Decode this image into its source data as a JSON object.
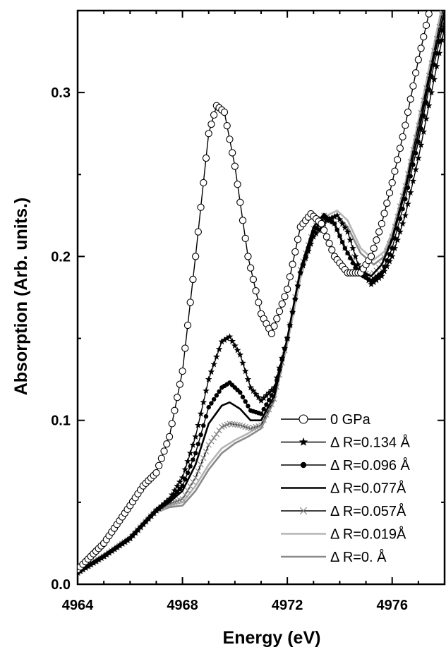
{
  "chart_data": {
    "type": "line",
    "xlabel": "Energy (eV)",
    "ylabel": "Absorption (Arb. units.)",
    "xlim": [
      4964,
      4978
    ],
    "ylim": [
      0.0,
      0.35
    ],
    "x_ticks": [
      4964,
      4968,
      4972,
      4976
    ],
    "x_tick_labels": [
      "4964",
      "4968",
      "4972",
      "4976"
    ],
    "y_ticks": [
      0.0,
      0.1,
      0.2,
      0.3
    ],
    "y_tick_labels": [
      "0.0",
      "0.1",
      "0.2",
      "0.3"
    ],
    "grid": false,
    "legend_position": "bottom-right",
    "series": [
      {
        "name": "0 GPa",
        "marker": "open-circle",
        "color": "#000000",
        "x": [
          4964,
          4965,
          4966,
          4966.5,
          4967,
          4967.5,
          4968,
          4968.5,
          4969,
          4969.3,
          4969.6,
          4970,
          4970.5,
          4971,
          4971.4,
          4972,
          4972.5,
          4972.9,
          4973.3,
          4973.8,
          4974.3,
          4974.8,
          4975.2,
          4975.6,
          4976,
          4976.5,
          4977,
          4977.5,
          4978
        ],
        "y": [
          0.009,
          0.025,
          0.048,
          0.06,
          0.068,
          0.09,
          0.13,
          0.2,
          0.275,
          0.292,
          0.288,
          0.255,
          0.2,
          0.165,
          0.153,
          0.18,
          0.218,
          0.226,
          0.22,
          0.2,
          0.19,
          0.19,
          0.2,
          0.22,
          0.245,
          0.28,
          0.32,
          0.355,
          0.38
        ]
      },
      {
        "name": "Δ R=0.134 Å",
        "marker": "filled-star",
        "color": "#000000",
        "x": [
          4964,
          4965,
          4966,
          4967,
          4967.5,
          4968,
          4968.5,
          4969,
          4969.5,
          4969.8,
          4970.2,
          4970.6,
          4971,
          4971.5,
          4972,
          4972.5,
          4973,
          4973.5,
          4973.9,
          4974.3,
          4974.7,
          4975.2,
          4975.6,
          4976,
          4976.5,
          4977,
          4977.5,
          4978
        ],
        "y": [
          0.007,
          0.017,
          0.028,
          0.045,
          0.052,
          0.065,
          0.09,
          0.125,
          0.148,
          0.151,
          0.14,
          0.12,
          0.112,
          0.12,
          0.15,
          0.19,
          0.212,
          0.222,
          0.225,
          0.215,
          0.195,
          0.183,
          0.188,
          0.2,
          0.225,
          0.26,
          0.3,
          0.34
        ]
      },
      {
        "name": "Δ R=0.096 Å",
        "marker": "filled-circle",
        "color": "#000000",
        "x": [
          4964,
          4965,
          4966,
          4967,
          4967.5,
          4968,
          4968.5,
          4969,
          4969.5,
          4969.8,
          4970.2,
          4970.6,
          4971,
          4971.5,
          4972,
          4972.5,
          4973,
          4973.4,
          4973.8,
          4974.2,
          4974.7,
          4975.2,
          4975.6,
          4976,
          4976.5,
          4977,
          4977.5,
          4978
        ],
        "y": [
          0.007,
          0.017,
          0.028,
          0.045,
          0.051,
          0.06,
          0.08,
          0.108,
          0.12,
          0.123,
          0.117,
          0.106,
          0.104,
          0.118,
          0.15,
          0.19,
          0.215,
          0.224,
          0.22,
          0.205,
          0.19,
          0.185,
          0.19,
          0.205,
          0.235,
          0.27,
          0.31,
          0.345
        ]
      },
      {
        "name": "Δ R=0.077Å",
        "marker": "solid-line",
        "color": "#000000",
        "x": [
          4964,
          4965,
          4966,
          4967,
          4967.5,
          4968,
          4968.5,
          4969,
          4969.5,
          4969.8,
          4970.2,
          4970.6,
          4971,
          4971.5,
          4972,
          4972.5,
          4973,
          4973.4,
          4973.8,
          4974.2,
          4974.7,
          4975.2,
          4975.6,
          4976,
          4976.5,
          4977,
          4977.5,
          4978
        ],
        "y": [
          0.007,
          0.017,
          0.028,
          0.045,
          0.05,
          0.057,
          0.073,
          0.098,
          0.109,
          0.111,
          0.107,
          0.1,
          0.1,
          0.115,
          0.15,
          0.192,
          0.218,
          0.226,
          0.22,
          0.205,
          0.192,
          0.188,
          0.195,
          0.21,
          0.24,
          0.275,
          0.315,
          0.35
        ]
      },
      {
        "name": "Δ R=0.057Å",
        "marker": "cross",
        "color": "#000000",
        "x": [
          4964,
          4965,
          4966,
          4967,
          4967.5,
          4968,
          4968.5,
          4969,
          4969.5,
          4969.8,
          4970.2,
          4970.6,
          4971,
          4971.5,
          4972,
          4972.5,
          4973,
          4973.4,
          4973.8,
          4974.2,
          4974.7,
          4975.2,
          4975.6,
          4976,
          4976.5,
          4977,
          4977.5,
          4978
        ],
        "y": [
          0.007,
          0.017,
          0.028,
          0.045,
          0.049,
          0.052,
          0.065,
          0.085,
          0.096,
          0.098,
          0.097,
          0.095,
          0.097,
          0.113,
          0.15,
          0.192,
          0.217,
          0.225,
          0.22,
          0.205,
          0.192,
          0.188,
          0.195,
          0.212,
          0.243,
          0.28,
          0.318,
          0.355
        ]
      },
      {
        "name": "Δ R=0.019Å",
        "marker": "solid-line",
        "color": "#b5b5b5",
        "x": [
          4964,
          4965,
          4966,
          4967,
          4967.5,
          4968,
          4968.5,
          4969,
          4969.5,
          4970,
          4970.5,
          4971,
          4971.5,
          4972,
          4972.5,
          4973,
          4973.5,
          4973.9,
          4974.3,
          4974.8,
          4975.3,
          4975.7,
          4976,
          4976.5,
          4977,
          4977.5,
          4978
        ],
        "y": [
          0.007,
          0.017,
          0.028,
          0.044,
          0.048,
          0.05,
          0.06,
          0.073,
          0.083,
          0.088,
          0.092,
          0.097,
          0.113,
          0.148,
          0.188,
          0.213,
          0.225,
          0.228,
          0.222,
          0.205,
          0.198,
          0.203,
          0.215,
          0.245,
          0.283,
          0.322,
          0.36
        ]
      },
      {
        "name": "Δ R=0. Å",
        "marker": "solid-line",
        "color": "#8a8a8a",
        "x": [
          4964,
          4965,
          4966,
          4967,
          4967.5,
          4968,
          4968.5,
          4969,
          4969.5,
          4970,
          4970.5,
          4971,
          4971.5,
          4972,
          4972.5,
          4973,
          4973.5,
          4973.9,
          4974.3,
          4974.8,
          4975.3,
          4975.7,
          4976,
          4976.5,
          4977,
          4977.5,
          4978
        ],
        "y": [
          0.007,
          0.017,
          0.028,
          0.044,
          0.047,
          0.048,
          0.057,
          0.07,
          0.08,
          0.086,
          0.09,
          0.095,
          0.112,
          0.147,
          0.187,
          0.212,
          0.223,
          0.225,
          0.218,
          0.202,
          0.195,
          0.2,
          0.212,
          0.242,
          0.28,
          0.32,
          0.358
        ]
      }
    ]
  }
}
